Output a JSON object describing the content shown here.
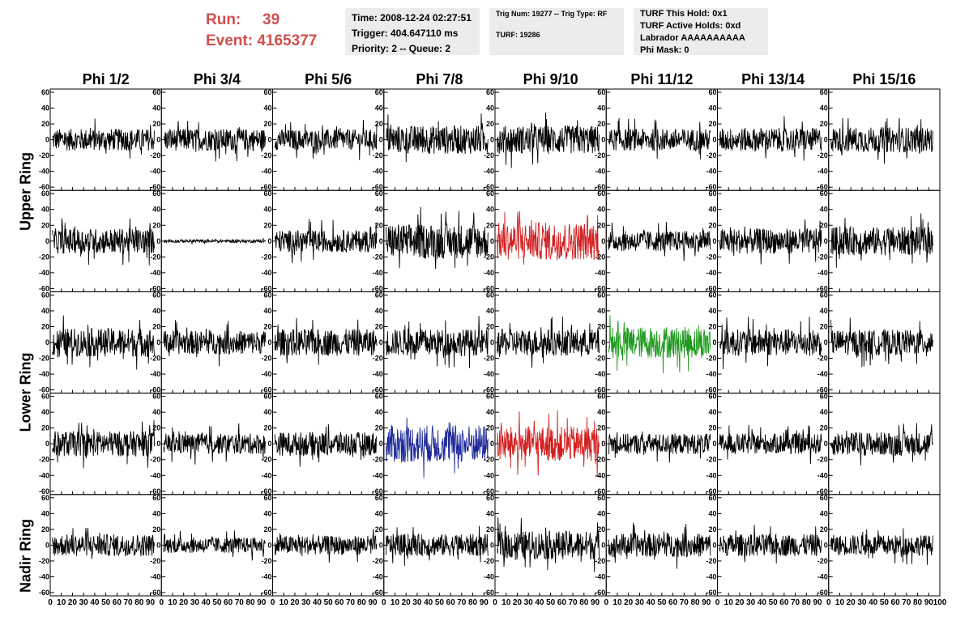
{
  "header": {
    "run_label": "Run:",
    "run_value": "39",
    "event_label": "Event:",
    "event_value": "4165377",
    "time": "Time: 2008-12-24 02:27:51",
    "trigger": "Trigger: 404.647110 ms",
    "priority": "Priority: 2 -- Queue: 2",
    "trig_num": "Trig Num: 19277 -- Trig Type: RF",
    "turf": "TURF: 19286",
    "turf_hold": "TURF This Hold: 0x1",
    "turf_active": "TURF Active Holds: 0xd",
    "labrador": "Labrador AAAAAAAAAA",
    "phi_mask": "Phi Mask: 0"
  },
  "columns": [
    "Phi 1/2",
    "Phi 3/4",
    "Phi 5/6",
    "Phi 7/8",
    "Phi 9/10",
    "Phi 11/12",
    "Phi 13/14",
    "Phi 15/16"
  ],
  "ring_labels": [
    "Upper Ring",
    "Lower Ring",
    "Nadir Ring"
  ],
  "chart_data": {
    "type": "line",
    "description_rows": 5,
    "description_cols": 8,
    "ylim": [
      -60,
      60
    ],
    "xlim": [
      0,
      100
    ],
    "y_ticks": [
      -60,
      -40,
      -20,
      0,
      20,
      40,
      60
    ],
    "x_ticks": [
      0,
      10,
      20,
      30,
      40,
      50,
      60,
      70,
      80,
      90,
      100
    ],
    "x_tick_labels": [
      "0",
      "10",
      "20",
      "30",
      "40",
      "50",
      "60",
      "70",
      "80",
      "90",
      "100"
    ],
    "panels": [
      [
        {
          "amp": 14,
          "color": "#000000"
        },
        {
          "amp": 14,
          "color": "#000000"
        },
        {
          "amp": 13,
          "color": "#000000"
        },
        {
          "amp": 18,
          "color": "#000000"
        },
        {
          "amp": 18,
          "color": "#000000"
        },
        {
          "amp": 14,
          "color": "#000000"
        },
        {
          "amp": 15,
          "color": "#000000"
        },
        {
          "amp": 16,
          "color": "#000000"
        }
      ],
      [
        {
          "amp": 16,
          "color": "#000000"
        },
        {
          "amp": 2,
          "color": "#000000"
        },
        {
          "amp": 14,
          "color": "#000000"
        },
        {
          "amp": 22,
          "color": "#000000"
        },
        {
          "amp": 24,
          "color": "#d11f1f"
        },
        {
          "amp": 13,
          "color": "#000000"
        },
        {
          "amp": 16,
          "color": "#000000"
        },
        {
          "amp": 18,
          "color": "#000000"
        }
      ],
      [
        {
          "amp": 18,
          "color": "#000000"
        },
        {
          "amp": 15,
          "color": "#000000"
        },
        {
          "amp": 17,
          "color": "#000000"
        },
        {
          "amp": 17,
          "color": "#000000"
        },
        {
          "amp": 17,
          "color": "#000000"
        },
        {
          "amp": 20,
          "color": "#1f9a1f"
        },
        {
          "amp": 17,
          "color": "#000000"
        },
        {
          "amp": 16,
          "color": "#000000"
        }
      ],
      [
        {
          "amp": 16,
          "color": "#000000"
        },
        {
          "amp": 13,
          "color": "#000000"
        },
        {
          "amp": 15,
          "color": "#000000"
        },
        {
          "amp": 24,
          "color": "#1f2a9a"
        },
        {
          "amp": 22,
          "color": "#d11f1f"
        },
        {
          "amp": 13,
          "color": "#000000"
        },
        {
          "amp": 13,
          "color": "#000000"
        },
        {
          "amp": 15,
          "color": "#000000"
        }
      ],
      [
        {
          "amp": 14,
          "color": "#000000"
        },
        {
          "amp": 10,
          "color": "#000000"
        },
        {
          "amp": 12,
          "color": "#000000"
        },
        {
          "amp": 14,
          "color": "#000000"
        },
        {
          "amp": 18,
          "color": "#000000"
        },
        {
          "amp": 15,
          "color": "#000000"
        },
        {
          "amp": 14,
          "color": "#000000"
        },
        {
          "amp": 13,
          "color": "#000000"
        }
      ]
    ]
  }
}
